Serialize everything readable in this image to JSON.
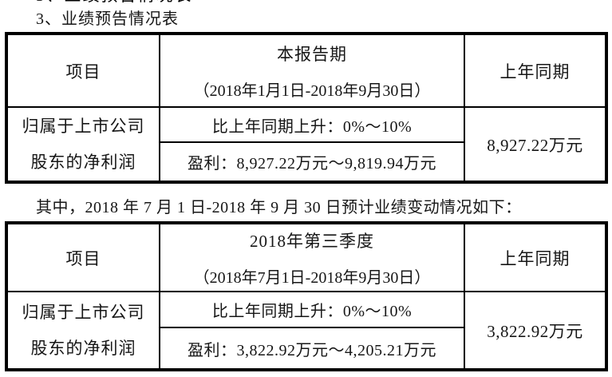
{
  "colors": {
    "background": "#ffffff",
    "text": "#161616",
    "border": "#000000"
  },
  "page": {
    "title": "3、业绩预告情况表",
    "between_note": "其中，2018 年 7 月 1 日-2018 年 9 月 30 日预计业绩变动情况如下："
  },
  "table1": {
    "header": {
      "item": "项目",
      "period_line1": "本报告期",
      "period_line2": "（2018年1月1日-2018年9月30日）",
      "prior": "上年同期"
    },
    "body": {
      "item_line1": "归属于上市公司",
      "item_line2": "股东的净利润",
      "change": "比上年同期上升：0%～10%",
      "profit": "盈利：8,927.22万元～9,819.94万元",
      "prior_value": "8,927.22万元"
    }
  },
  "table2": {
    "header": {
      "item": "项目",
      "period_line1": "2018年第三季度",
      "period_line2": "（2018年7月1日-2018年9月30日）",
      "prior": "上年同期"
    },
    "body": {
      "item_line1": "归属于上市公司",
      "item_line2": "股东的净利润",
      "change": "比上年同期上升：0%～10%",
      "profit": "盈利：3,822.92万元～4,205.21万元",
      "prior_value": "3,822.92万元"
    }
  }
}
